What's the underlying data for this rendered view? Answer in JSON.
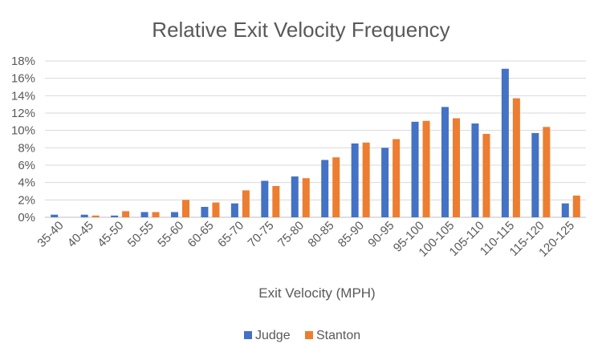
{
  "chart_data": {
    "type": "bar",
    "title": "Relative Exit Velocity Frequency",
    "xlabel": "Exit Velocity (MPH)",
    "ylabel": "",
    "ylim": [
      0,
      18
    ],
    "y_ticks": [
      0,
      2,
      4,
      6,
      8,
      10,
      12,
      14,
      16,
      18
    ],
    "y_tick_labels": [
      "0%",
      "2%",
      "4%",
      "6%",
      "8%",
      "10%",
      "12%",
      "14%",
      "16%",
      "18%"
    ],
    "grid": true,
    "legend_position": "bottom",
    "categories": [
      "35-40",
      "40-45",
      "45-50",
      "50-55",
      "55-60",
      "60-65",
      "65-70",
      "70-75",
      "75-80",
      "80-85",
      "85-90",
      "90-95",
      "95-100",
      "100-105",
      "105-110",
      "110-115",
      "115-120",
      "120-125"
    ],
    "series": [
      {
        "name": "Judge",
        "color": "#4472C4",
        "values": [
          0.3,
          0.3,
          0.2,
          0.6,
          0.6,
          1.2,
          1.6,
          4.2,
          4.7,
          6.6,
          8.5,
          8.0,
          11.0,
          12.7,
          10.8,
          17.1,
          9.7,
          1.6
        ]
      },
      {
        "name": "Stanton",
        "color": "#ED7D31",
        "values": [
          0.0,
          0.2,
          0.7,
          0.6,
          2.0,
          1.7,
          3.1,
          3.6,
          4.5,
          6.9,
          8.6,
          9.0,
          11.1,
          11.4,
          9.6,
          13.7,
          10.4,
          2.5
        ]
      }
    ]
  }
}
